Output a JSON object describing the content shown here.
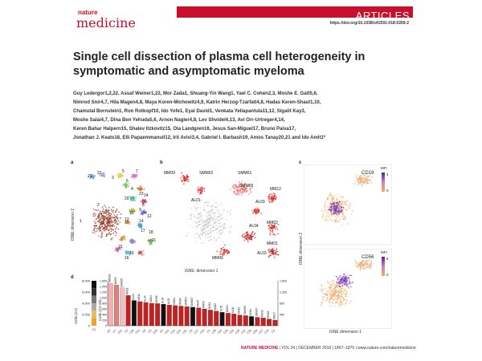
{
  "journal": {
    "small": "nature",
    "big": "medicine",
    "section": "ARTICLES",
    "doi": "https://doi.org/10.1038/s41591-018-0269-2"
  },
  "article": {
    "title": "Single cell dissection of plasma cell heterogeneity in symptomatic and asymptomatic myeloma",
    "author_lines": [
      "Guy Ledergor1,2,22, Assaf Weiner1,22, Mor Zada1, Shuang-Yin Wang1, Yael C. Cohen2,3, Moshe E. Gatt5,6,",
      "Nimrod Snir4,7, Hila Magen4,8, Maya Koren-Michowitz4,9, Katrin Herzog-Tzarfati4,8, Hadas Keren-Shaul1,10,",
      "Chamutal Bornstein1, Ron Rotkopf10, Ido Yofe1, Eyal David1, Venkata Yellapantula11,12, Sigalit Kay3,",
      "Moshe Salai4,7, Dina Ben Yehuda5,6, Arnon Nagler4,8, Lev Shvidel4,13, Avi Orr-Urtreger4,14,",
      "Keren Bahar Halpern15, Shalev Itzkovitz15, Ola Landgren16, Jesus San-Miguel17, Bruno Paiva17,",
      "Jonathan J. Keats18, Elli Papaemmanuil12, Irit Avivi3,4, Gabriel I. Barbash19, Amos Tanay20,21 and Ido Amit1*"
    ]
  },
  "figure": {
    "panel_labels": {
      "a": "a",
      "b": "b",
      "c": "c",
      "d": "d"
    },
    "axes": {
      "tsne1": "tSNE: dimension 1",
      "tsne2": "tSNE dimension 2",
      "tsne2_c": "tSNE dimension 2",
      "tsne1_c": "tSNE dimension 1"
    },
    "panel_a_clusters": [
      "22",
      "21",
      "1",
      "3",
      "5",
      "6",
      "7",
      "4",
      "23",
      "24",
      "20",
      "2",
      "8",
      "9",
      "10",
      "12",
      "13",
      "14",
      "17",
      "18",
      "11",
      "19",
      "15",
      "16"
    ],
    "panel_b_labels": [
      "SMM02",
      "SMM01",
      "MM09",
      "SMM05",
      "AL01",
      "AL03",
      "MM12",
      "MM02",
      "AL04",
      "MM06",
      "MM01",
      "AL03"
    ],
    "panel_c": [
      {
        "marker": "CD19",
        "legend_title": "MFI",
        "max": "4",
        "min": "0"
      },
      {
        "marker": "CD56",
        "legend_title": "MFI",
        "max": "5",
        "min": "0"
      }
    ]
  },
  "chart_data": {
    "type": "bar",
    "title": "",
    "ylabel_left": "Cells (C1)",
    "ylabel_mid": "Cells (C2-29)",
    "left_ticks": [
      "8,000",
      "6,000",
      "4,000",
      "2,000",
      "0"
    ],
    "mid_ticks": [
      "1,600",
      "1,400",
      "1,200",
      "1,000",
      "800",
      "600",
      "400",
      "200",
      "0"
    ],
    "right_ticks": [
      "1,600",
      "1,200",
      "800",
      "400"
    ],
    "categories": [
      "C6",
      "C7",
      "C21",
      "C5",
      "C26",
      "C14",
      "C8",
      "C3",
      "C20",
      "C4",
      "C12",
      "C24",
      "C25",
      "C11",
      "C9",
      "C17",
      "C13",
      "C2",
      "C29",
      "C15",
      "C28",
      "C16",
      "C18",
      "C22",
      "C10",
      "C19",
      "C27",
      "C23",
      "C1"
    ],
    "values": [
      1500,
      1450,
      1350,
      1080,
      900,
      860,
      830,
      800,
      790,
      770,
      740,
      720,
      700,
      680,
      660,
      640,
      600,
      560,
      520,
      480,
      450,
      420,
      380,
      360,
      330,
      300,
      280,
      240,
      200
    ],
    "bar_labels": [
      "SMM02",
      "MM09",
      "SMM05",
      "MM01",
      "AL01",
      "MM12",
      "AL04",
      "MM03",
      "MM06",
      "AL02",
      "AL03",
      "MM04",
      "MM08",
      "SMM04",
      "SMM03",
      "MM07",
      "MM05",
      "MM11",
      "MM02",
      "AL05",
      "MM10",
      "AL06",
      "MM13",
      "SMM06",
      "MM14",
      "SMM07",
      "MM15",
      "MM16",
      "MM17"
    ],
    "ylim": [
      0,
      1600
    ]
  },
  "footer": {
    "journal": "NATURE MEDICINE",
    "details": " | VOL 24 | DECEMBER 2018 | 1867–1876 | www.nature.com/naturemedicine"
  }
}
